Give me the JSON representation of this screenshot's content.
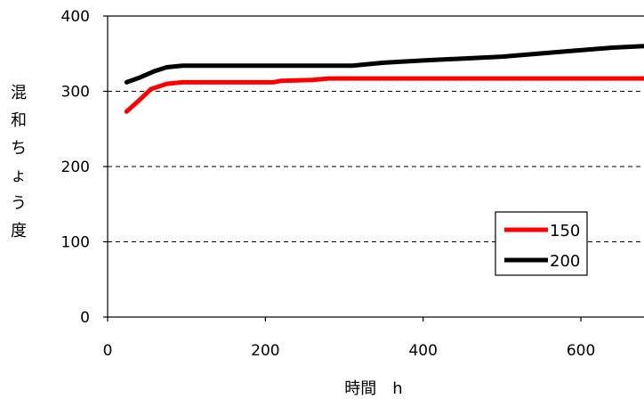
{
  "chart_data": {
    "type": "line",
    "xlabel": "時間　h",
    "ylabel": "混和ちょう度",
    "xlim": [
      0,
      680
    ],
    "ylim": [
      0,
      400
    ],
    "xticks": [
      0,
      200,
      400,
      600
    ],
    "yticks": [
      0,
      100,
      200,
      300,
      400
    ],
    "grid": "horizontal-dashed",
    "legend_position": "lower-right",
    "series": [
      {
        "name": "150",
        "color": "#ff0000",
        "x": [
          24,
          40,
          55,
          75,
          95,
          120,
          170,
          210,
          220,
          260,
          280,
          300,
          340,
          400,
          500,
          600,
          680
        ],
        "y": [
          273,
          288,
          303,
          310,
          312,
          312,
          312,
          312,
          314,
          315,
          317,
          317,
          317,
          317,
          317,
          317,
          317
        ]
      },
      {
        "name": "200",
        "color": "#000000",
        "x": [
          24,
          40,
          60,
          75,
          95,
          150,
          200,
          250,
          310,
          350,
          400,
          500,
          580,
          640,
          680
        ],
        "y": [
          312,
          318,
          327,
          332,
          334,
          334,
          334,
          334,
          334,
          338,
          341,
          346,
          353,
          358,
          360
        ]
      }
    ]
  }
}
